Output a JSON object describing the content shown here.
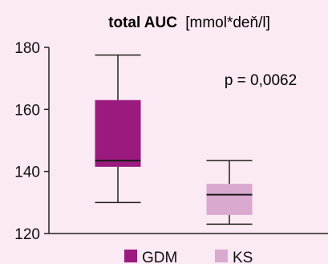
{
  "chart_data": {
    "type": "box",
    "title": "total AUC",
    "title_unit": "[mmol*deň/l]",
    "ylim": [
      120,
      180
    ],
    "yticks": [
      120,
      140,
      160,
      180
    ],
    "ytick_labels": [
      "120",
      "140",
      "160",
      "180"
    ],
    "grid": false,
    "legend_position": "bottom",
    "annotation": "p = 0,0062",
    "series": [
      {
        "name": "GDM",
        "whisker_low": 130,
        "q1": 141.5,
        "median": 143.5,
        "q3": 163,
        "whisker_high": 177.5,
        "color": "#9b1a7e"
      },
      {
        "name": "KS",
        "whisker_low": 123,
        "q1": 126,
        "median": 132.5,
        "q3": 136,
        "whisker_high": 143.5,
        "color": "#d9a9d0"
      }
    ]
  },
  "colors": {
    "background": "#fbe9f3",
    "axis": "#222222"
  }
}
